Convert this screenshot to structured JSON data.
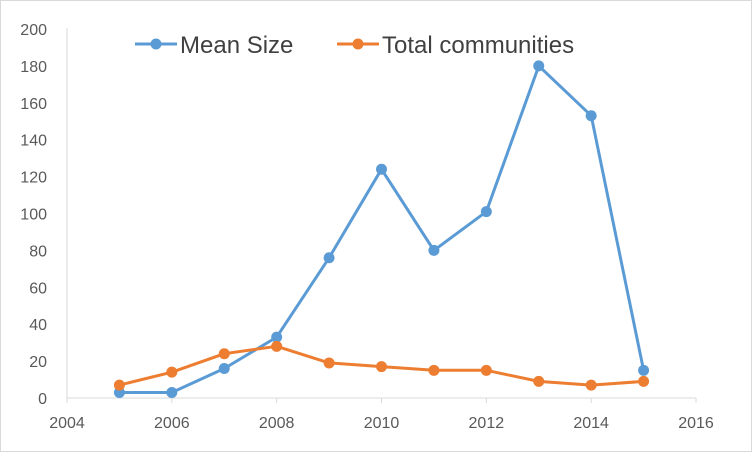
{
  "chart_data": {
    "type": "line",
    "title": "",
    "xlabel": "",
    "ylabel": "",
    "xlim": [
      2004,
      2016
    ],
    "ylim": [
      0,
      200
    ],
    "xticks": [
      2004,
      2006,
      2008,
      2010,
      2012,
      2014,
      2016
    ],
    "yticks": [
      0,
      20,
      40,
      60,
      80,
      100,
      120,
      140,
      160,
      180,
      200
    ],
    "grid": false,
    "legend_position": "top",
    "series": [
      {
        "name": "Mean Size",
        "color": "#5b9bd5",
        "x": [
          2005,
          2006,
          2007,
          2008,
          2009,
          2010,
          2011,
          2012,
          2013,
          2014,
          2015
        ],
        "y": [
          3,
          3,
          16,
          33,
          76,
          124,
          80,
          101,
          180,
          153,
          15
        ]
      },
      {
        "name": "Total communities",
        "color": "#ed7d31",
        "x": [
          2005,
          2006,
          2007,
          2008,
          2009,
          2010,
          2011,
          2012,
          2013,
          2014,
          2015
        ],
        "y": [
          7,
          14,
          24,
          28,
          19,
          17,
          15,
          15,
          9,
          7,
          9
        ]
      }
    ]
  }
}
